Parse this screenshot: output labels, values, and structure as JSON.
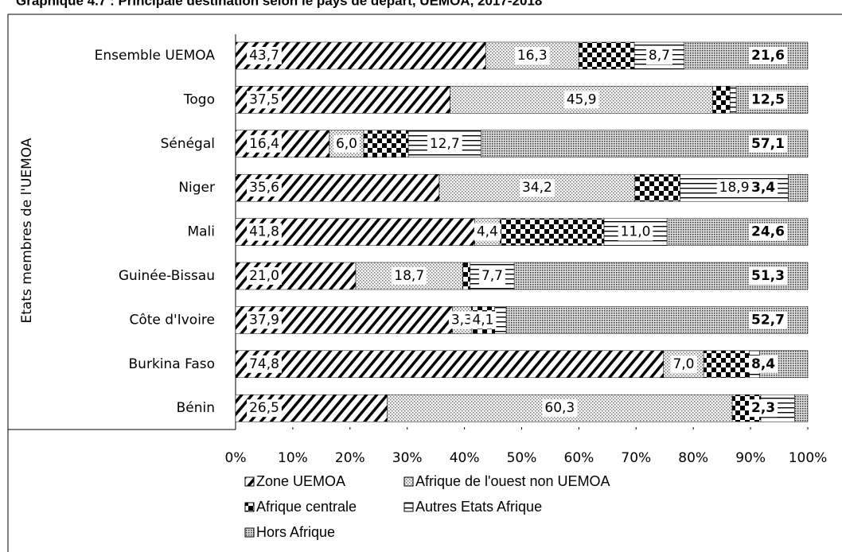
{
  "chart_data": {
    "type": "stacked_barh",
    "title": "Graphique 4.7 : Principale destination selon le pays de départ, UEMOA, 2017-2018",
    "y_label": "Etats membres de l'UEMOA",
    "categories": [
      "Ensemble UEMOA",
      "Togo",
      "Sénégal",
      "Niger",
      "Mali",
      "Guinée-Bissau",
      "Côte d'Ivoire",
      "Burkina Faso",
      "Bénin"
    ],
    "series": [
      {
        "name": "Zone UEMOA",
        "color": "#000000",
        "values": [
          43.7,
          37.5,
          16.4,
          35.6,
          41.8,
          21.0,
          37.9,
          74.8,
          26.5
        ],
        "value_labels": [
          "43,7",
          "37,5",
          "16,4",
          "35,6",
          "41,8",
          "21,0",
          "37,9",
          "74,8",
          "26,5"
        ]
      },
      {
        "name": "Afrique de l'ouest non UEMOA",
        "color": "#808080",
        "values": [
          16.3,
          45.9,
          6.0,
          34.2,
          4.4,
          18.7,
          3.3,
          7.0,
          60.3
        ],
        "value_labels": [
          "16,3",
          "45,9",
          "6,0",
          "34,2",
          "4,4",
          "18,7",
          "3,3",
          "7,0",
          "60,3"
        ]
      },
      {
        "name": "Afrique centrale",
        "color": "#000000",
        "values": [
          9.7,
          3.0,
          7.8,
          7.9,
          18.2,
          1.3,
          4.1,
          8.0,
          5.0
        ],
        "value_labels": [
          null,
          null,
          null,
          null,
          null,
          null,
          "4,1",
          null,
          null
        ]
      },
      {
        "name": "Autres Etats Afrique",
        "color": "#000000",
        "values": [
          8.7,
          1.1,
          12.7,
          18.9,
          11.0,
          7.7,
          2.0,
          1.8,
          5.9
        ],
        "value_labels": [
          "8,7",
          null,
          "12,7",
          "18,9",
          "11,0",
          "7,7",
          null,
          null,
          null
        ]
      },
      {
        "name": "Hors Afrique",
        "color": "#555555",
        "values": [
          21.6,
          12.5,
          57.1,
          3.4,
          24.6,
          51.3,
          52.7,
          8.4,
          2.3
        ],
        "value_labels": [
          "21,6",
          "12,5",
          "57,1",
          "3,4",
          "24,6",
          "51,3",
          "52,7",
          "8,4",
          "2,3"
        ]
      }
    ],
    "xlim": [
      0,
      100
    ],
    "xticks": [
      {
        "value": 0,
        "label": "0%"
      },
      {
        "value": 10,
        "label": "10%"
      },
      {
        "value": 20,
        "label": "20%"
      },
      {
        "value": 30,
        "label": "30%"
      },
      {
        "value": 40,
        "label": "40%"
      },
      {
        "value": 50,
        "label": "50%"
      },
      {
        "value": 60,
        "label": "60%"
      },
      {
        "value": 70,
        "label": "70%"
      },
      {
        "value": 80,
        "label": "80%"
      },
      {
        "value": 90,
        "label": "90%"
      },
      {
        "value": 100,
        "label": "100%"
      }
    ],
    "grid": false
  }
}
